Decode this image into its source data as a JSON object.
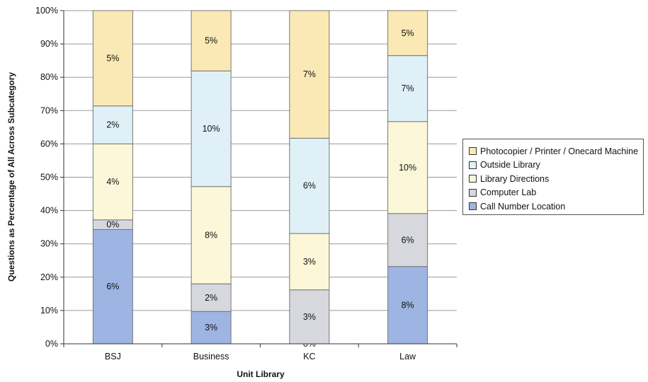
{
  "chart_data": {
    "type": "bar",
    "stacked": true,
    "normalized_percent": true,
    "xlabel": "Unit Library",
    "ylabel": "Questions as Percentage of All Across Subcategory",
    "ylim": [
      0,
      100
    ],
    "y_ticks": [
      "0%",
      "10%",
      "20%",
      "30%",
      "40%",
      "50%",
      "60%",
      "70%",
      "80%",
      "90%",
      "100%"
    ],
    "categories": [
      "BSJ",
      "Business",
      "KC",
      "Law"
    ],
    "legend_position": "right",
    "series": [
      {
        "name": "Call Number Location",
        "color": "#9eb4e2",
        "heights": [
          34.3,
          9.7,
          0,
          23.2
        ],
        "labels": [
          "6%",
          "3%",
          "0%",
          "8%"
        ]
      },
      {
        "name": "Computer Lab",
        "color": "#d6d8de",
        "heights": [
          2.9,
          8.3,
          16.2,
          15.9
        ],
        "labels": [
          "0%",
          "2%",
          "3%",
          "6%"
        ]
      },
      {
        "name": "Library Directions",
        "color": "#fbf7d8",
        "heights": [
          22.8,
          29.2,
          16.9,
          27.6
        ],
        "labels": [
          "4%",
          "8%",
          "3%",
          "10%"
        ]
      },
      {
        "name": "Outside Library",
        "color": "#dff0f7",
        "heights": [
          11.4,
          34.7,
          28.6,
          19.8
        ],
        "labels": [
          "2%",
          "10%",
          "6%",
          "7%"
        ]
      },
      {
        "name": "Photocopier / Printer / Onecard Machine",
        "color": "#fae9b4",
        "heights": [
          28.6,
          18.1,
          38.3,
          13.5
        ],
        "labels": [
          "5%",
          "5%",
          "7%",
          "5%"
        ]
      }
    ]
  }
}
